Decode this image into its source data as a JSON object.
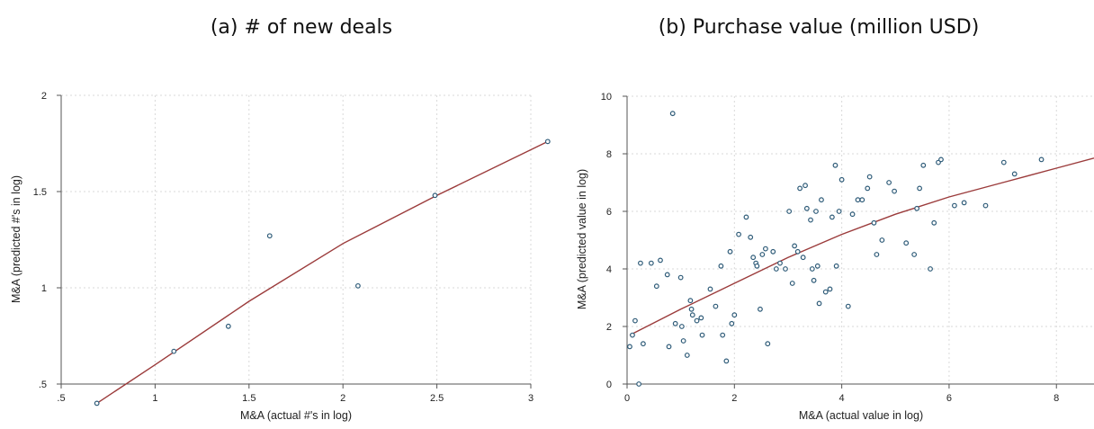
{
  "chart_data": [
    {
      "type": "scatter",
      "title": "(a) # of new deals",
      "xlabel": "M&A (actual #'s in log)",
      "ylabel": "M&A (predicted #'s in log)",
      "xlim": [
        0.5,
        3.0
      ],
      "ylim": [
        0.5,
        2.0
      ],
      "xticks": [
        0.5,
        1.0,
        1.5,
        2.0,
        2.5,
        3.0
      ],
      "xtick_labels": [
        ".5",
        "1",
        "1.5",
        "2",
        "2.5",
        "3"
      ],
      "yticks": [
        0.5,
        1.0,
        1.5,
        2.0
      ],
      "ytick_labels": [
        ".5",
        "1",
        "1.5",
        "2"
      ],
      "grid": true,
      "points": [
        {
          "x": 0.69,
          "y": 0.4
        },
        {
          "x": 1.1,
          "y": 0.67
        },
        {
          "x": 1.39,
          "y": 0.8
        },
        {
          "x": 1.61,
          "y": 1.27
        },
        {
          "x": 2.08,
          "y": 1.01
        },
        {
          "x": 2.49,
          "y": 1.48
        },
        {
          "x": 3.09,
          "y": 1.76
        }
      ],
      "fit_line": [
        {
          "x": 0.69,
          "y": 0.4
        },
        {
          "x": 1.0,
          "y": 0.6
        },
        {
          "x": 1.5,
          "y": 0.93
        },
        {
          "x": 2.0,
          "y": 1.23
        },
        {
          "x": 2.5,
          "y": 1.48
        },
        {
          "x": 3.09,
          "y": 1.76
        }
      ],
      "colors": {
        "marker": "#2e5b78",
        "fit": "#9b3b3b",
        "grid": "#d9d9d9"
      }
    },
    {
      "type": "scatter",
      "title": "(b) Purchase value (million USD)",
      "xlabel": "M&A (actual value in log)",
      "ylabel": "M&A (predicted value in log)",
      "xlim": [
        0,
        8.7
      ],
      "ylim": [
        0,
        10
      ],
      "xticks": [
        0,
        2,
        4,
        6,
        8
      ],
      "xtick_labels": [
        "0",
        "2",
        "4",
        "6",
        "8"
      ],
      "yticks": [
        0,
        2,
        4,
        6,
        8,
        10
      ],
      "ytick_labels": [
        "0",
        "2",
        "4",
        "6",
        "8",
        "10"
      ],
      "grid": true,
      "points": [
        {
          "x": 0.05,
          "y": 1.3
        },
        {
          "x": 0.15,
          "y": 2.2
        },
        {
          "x": 0.1,
          "y": 1.7
        },
        {
          "x": 0.22,
          "y": 0.0
        },
        {
          "x": 0.3,
          "y": 1.4
        },
        {
          "x": 0.25,
          "y": 4.2
        },
        {
          "x": 0.45,
          "y": 4.2
        },
        {
          "x": 0.55,
          "y": 3.4
        },
        {
          "x": 0.62,
          "y": 4.3
        },
        {
          "x": 0.75,
          "y": 3.8
        },
        {
          "x": 0.78,
          "y": 1.3
        },
        {
          "x": 0.85,
          "y": 9.4
        },
        {
          "x": 0.9,
          "y": 2.1
        },
        {
          "x": 1.0,
          "y": 3.7
        },
        {
          "x": 1.02,
          "y": 2.0
        },
        {
          "x": 1.05,
          "y": 1.5
        },
        {
          "x": 1.12,
          "y": 1.0
        },
        {
          "x": 1.18,
          "y": 2.9
        },
        {
          "x": 1.2,
          "y": 2.6
        },
        {
          "x": 1.22,
          "y": 2.4
        },
        {
          "x": 1.3,
          "y": 2.2
        },
        {
          "x": 1.38,
          "y": 2.3
        },
        {
          "x": 1.4,
          "y": 1.7
        },
        {
          "x": 1.55,
          "y": 3.3
        },
        {
          "x": 1.65,
          "y": 2.7
        },
        {
          "x": 1.75,
          "y": 4.1
        },
        {
          "x": 1.78,
          "y": 1.7
        },
        {
          "x": 1.85,
          "y": 0.8
        },
        {
          "x": 1.92,
          "y": 4.6
        },
        {
          "x": 1.95,
          "y": 2.1
        },
        {
          "x": 2.0,
          "y": 2.4
        },
        {
          "x": 2.08,
          "y": 5.2
        },
        {
          "x": 2.22,
          "y": 5.8
        },
        {
          "x": 2.3,
          "y": 5.1
        },
        {
          "x": 2.35,
          "y": 4.4
        },
        {
          "x": 2.4,
          "y": 4.2
        },
        {
          "x": 2.42,
          "y": 4.1
        },
        {
          "x": 2.48,
          "y": 2.6
        },
        {
          "x": 2.52,
          "y": 4.5
        },
        {
          "x": 2.58,
          "y": 4.7
        },
        {
          "x": 2.62,
          "y": 1.4
        },
        {
          "x": 2.72,
          "y": 4.6
        },
        {
          "x": 2.78,
          "y": 4.0
        },
        {
          "x": 2.85,
          "y": 4.2
        },
        {
          "x": 2.95,
          "y": 4.0
        },
        {
          "x": 3.02,
          "y": 6.0
        },
        {
          "x": 3.08,
          "y": 3.5
        },
        {
          "x": 3.12,
          "y": 4.8
        },
        {
          "x": 3.18,
          "y": 4.6
        },
        {
          "x": 3.22,
          "y": 6.8
        },
        {
          "x": 3.28,
          "y": 4.4
        },
        {
          "x": 3.32,
          "y": 6.9
        },
        {
          "x": 3.35,
          "y": 6.1
        },
        {
          "x": 3.42,
          "y": 5.7
        },
        {
          "x": 3.45,
          "y": 4.0
        },
        {
          "x": 3.48,
          "y": 3.6
        },
        {
          "x": 3.52,
          "y": 6.0
        },
        {
          "x": 3.55,
          "y": 4.1
        },
        {
          "x": 3.58,
          "y": 2.8
        },
        {
          "x": 3.62,
          "y": 6.4
        },
        {
          "x": 3.7,
          "y": 3.2
        },
        {
          "x": 3.78,
          "y": 3.3
        },
        {
          "x": 3.82,
          "y": 5.8
        },
        {
          "x": 3.88,
          "y": 7.6
        },
        {
          "x": 3.9,
          "y": 4.1
        },
        {
          "x": 3.95,
          "y": 6.0
        },
        {
          "x": 4.0,
          "y": 7.1
        },
        {
          "x": 4.12,
          "y": 2.7
        },
        {
          "x": 4.2,
          "y": 5.9
        },
        {
          "x": 4.3,
          "y": 6.4
        },
        {
          "x": 4.38,
          "y": 6.4
        },
        {
          "x": 4.48,
          "y": 6.8
        },
        {
          "x": 4.52,
          "y": 7.2
        },
        {
          "x": 4.6,
          "y": 5.6
        },
        {
          "x": 4.65,
          "y": 4.5
        },
        {
          "x": 4.75,
          "y": 5.0
        },
        {
          "x": 4.88,
          "y": 7.0
        },
        {
          "x": 4.98,
          "y": 6.7
        },
        {
          "x": 5.2,
          "y": 4.9
        },
        {
          "x": 5.35,
          "y": 4.5
        },
        {
          "x": 5.4,
          "y": 6.1
        },
        {
          "x": 5.45,
          "y": 6.8
        },
        {
          "x": 5.52,
          "y": 7.6
        },
        {
          "x": 5.65,
          "y": 4.0
        },
        {
          "x": 5.72,
          "y": 5.6
        },
        {
          "x": 5.8,
          "y": 7.7
        },
        {
          "x": 5.85,
          "y": 7.8
        },
        {
          "x": 6.1,
          "y": 6.2
        },
        {
          "x": 6.28,
          "y": 6.3
        },
        {
          "x": 6.68,
          "y": 6.2
        },
        {
          "x": 7.02,
          "y": 7.7
        },
        {
          "x": 7.22,
          "y": 7.3
        },
        {
          "x": 7.72,
          "y": 7.8
        }
      ],
      "fit_line": [
        {
          "x": 0.05,
          "y": 1.7
        },
        {
          "x": 1.0,
          "y": 2.6
        },
        {
          "x": 2.0,
          "y": 3.5
        },
        {
          "x": 3.0,
          "y": 4.4
        },
        {
          "x": 4.0,
          "y": 5.2
        },
        {
          "x": 5.0,
          "y": 5.9
        },
        {
          "x": 6.0,
          "y": 6.5
        },
        {
          "x": 7.0,
          "y": 7.0
        },
        {
          "x": 8.0,
          "y": 7.5
        },
        {
          "x": 8.7,
          "y": 7.85
        }
      ],
      "colors": {
        "marker": "#2e5b78",
        "fit": "#9b3b3b",
        "grid": "#d9d9d9"
      }
    }
  ]
}
